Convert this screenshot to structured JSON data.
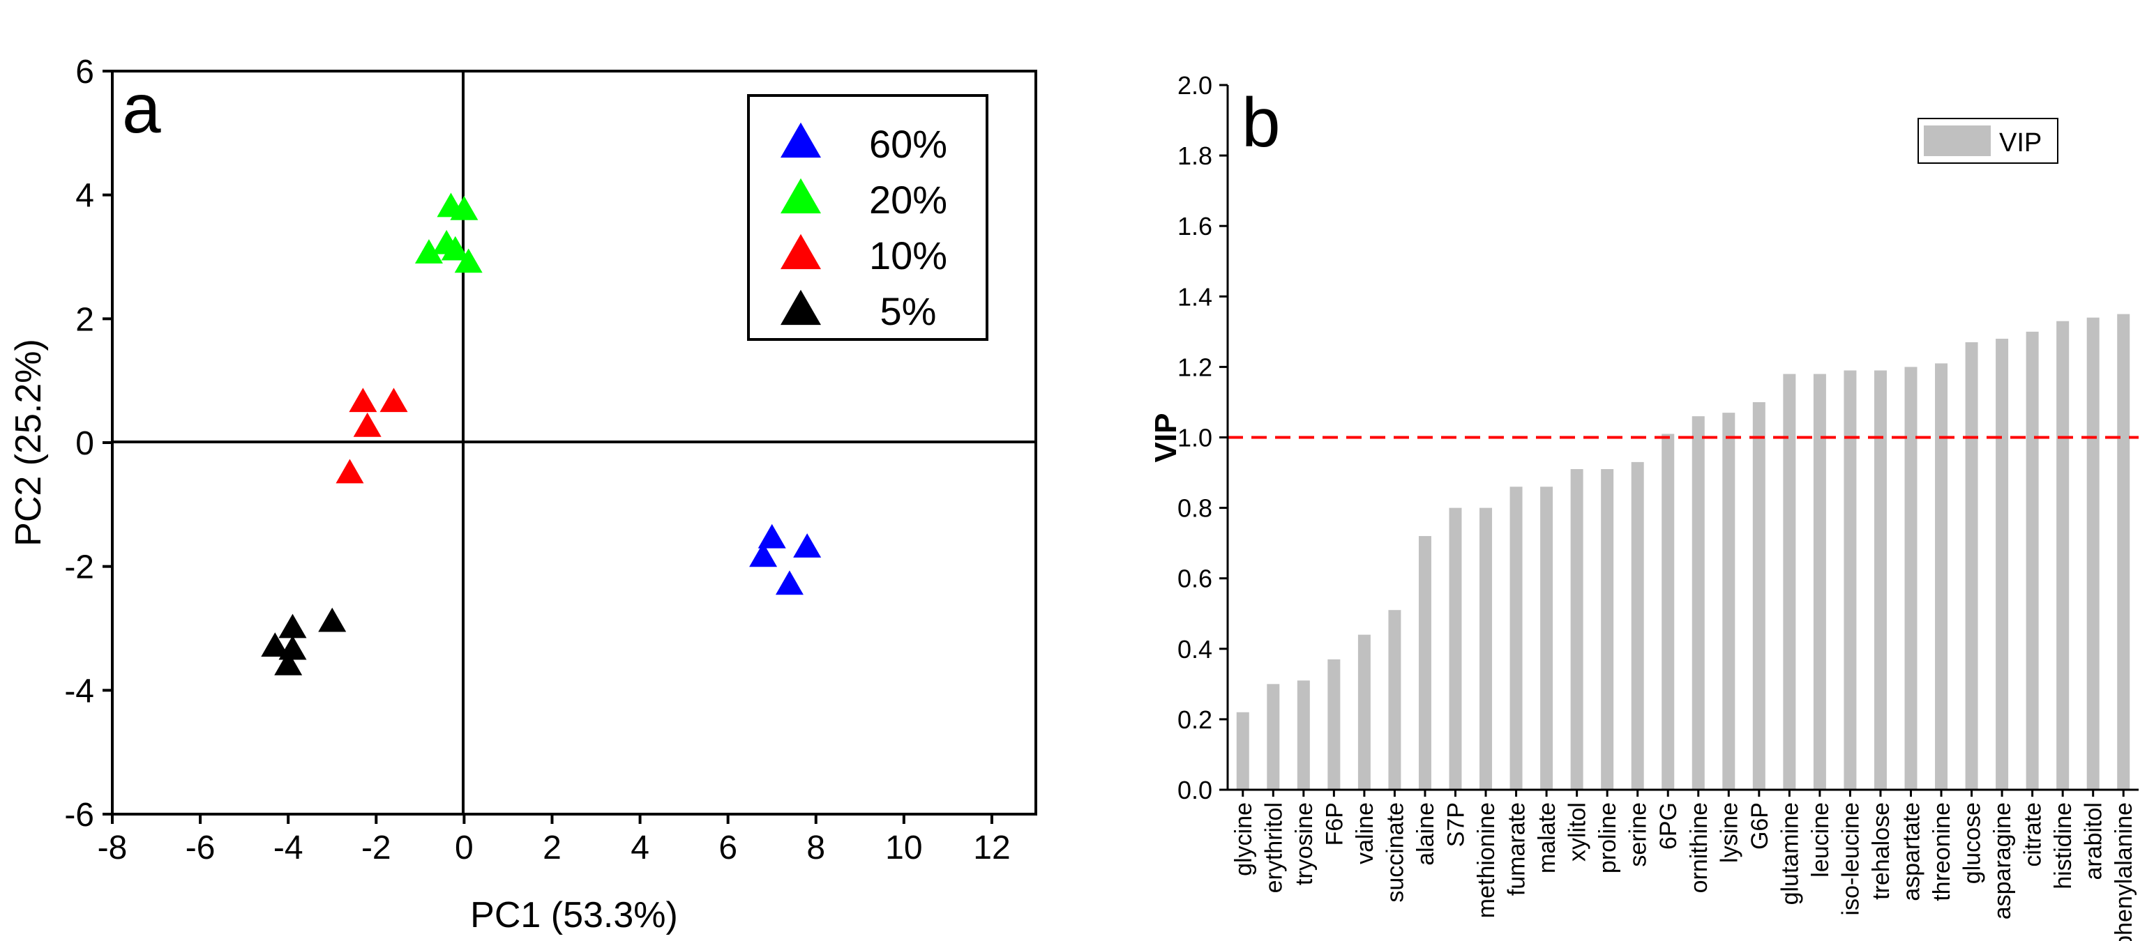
{
  "chart_data": [
    {
      "type": "scatter",
      "panel_label": "a",
      "xlabel": "PC1 (53.3%)",
      "ylabel": "PC2 (25.2%)",
      "xlim": [
        -8,
        13
      ],
      "ylim": [
        -6,
        6
      ],
      "xticks": [
        -8,
        -6,
        -4,
        -2,
        0,
        2,
        4,
        6,
        8,
        10,
        12
      ],
      "yticks": [
        -6,
        -4,
        -2,
        0,
        2,
        4,
        6
      ],
      "marker": "triangle",
      "legend_position": "top-right",
      "series": [
        {
          "name": "60%",
          "color": "#0000ff",
          "points": [
            [
              7.0,
              -1.55
            ],
            [
              7.8,
              -1.7
            ],
            [
              6.8,
              -1.85
            ],
            [
              7.4,
              -2.3
            ]
          ]
        },
        {
          "name": "20%",
          "color": "#00ff00",
          "points": [
            [
              -0.3,
              3.8
            ],
            [
              0.0,
              3.75
            ],
            [
              -0.4,
              3.2
            ],
            [
              -0.2,
              3.1
            ],
            [
              -0.8,
              3.05
            ],
            [
              0.1,
              2.9
            ]
          ]
        },
        {
          "name": "10%",
          "color": "#ff0000",
          "points": [
            [
              -2.3,
              0.65
            ],
            [
              -1.6,
              0.65
            ],
            [
              -2.2,
              0.25
            ],
            [
              -2.6,
              -0.5
            ]
          ]
        },
        {
          "name": "5%",
          "color": "#000000",
          "points": [
            [
              -3.0,
              -2.9
            ],
            [
              -3.9,
              -3.0
            ],
            [
              -4.3,
              -3.3
            ],
            [
              -3.9,
              -3.35
            ],
            [
              -4.0,
              -3.6
            ]
          ]
        }
      ]
    },
    {
      "type": "bar",
      "panel_label": "b",
      "xlabel": "",
      "ylabel": "VIP",
      "ylim": [
        0,
        2.0
      ],
      "yticks": [
        "0.0",
        "0.2",
        "0.4",
        "0.6",
        "0.8",
        "1.0",
        "1.2",
        "1.4",
        "1.6",
        "1.8",
        "2.0"
      ],
      "threshold": 1.0,
      "threshold_color": "#ff0000",
      "bar_color": "#c0c0c0",
      "legend_position": "top-right",
      "series": [
        {
          "name": "VIP",
          "values": [
            0.22,
            0.3,
            0.31,
            0.37,
            0.44,
            0.51,
            0.72,
            0.8,
            0.8,
            0.86,
            0.86,
            0.91,
            0.91,
            0.93,
            1.01,
            1.06,
            1.07,
            1.1,
            1.18,
            1.18,
            1.19,
            1.19,
            1.2,
            1.21,
            1.27,
            1.28,
            1.3,
            1.33,
            1.34,
            1.35
          ]
        }
      ],
      "categories": [
        "glycine",
        "erythritol",
        "tryosine",
        "F6P",
        "valine",
        "succinate",
        "alaine",
        "S7P",
        "methionine",
        "fumarate",
        "malate",
        "xylitol",
        "proline",
        "serine",
        "6PG",
        "ornithine",
        "lysine",
        "G6P",
        "glutamine",
        "leucine",
        "iso-leucine",
        "trehalose",
        "aspartate",
        "threonine",
        "glucose",
        "asparagine",
        "citrate",
        "histidine",
        "arabitol",
        "phenylalanine"
      ]
    }
  ]
}
